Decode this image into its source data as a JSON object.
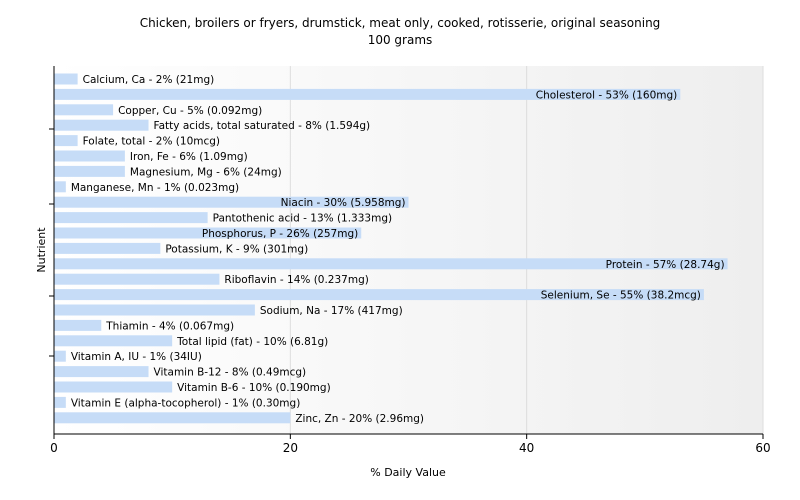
{
  "chart_data": {
    "type": "bar",
    "orientation": "horizontal",
    "title": "Chicken, broilers or fryers, drumstick, meat only, cooked, rotisserie, original seasoning",
    "subtitle": "100 grams",
    "xlabel": "% Daily Value",
    "ylabel": "Nutrient",
    "xlim": [
      0,
      60
    ],
    "xticks": [
      0,
      20,
      40,
      60
    ],
    "grid": true,
    "bar_color": "#c6dcf7",
    "categories": [
      "Calcium, Ca",
      "Cholesterol",
      "Copper, Cu",
      "Fatty acids, total saturated",
      "Folate, total",
      "Iron, Fe",
      "Magnesium, Mg",
      "Manganese, Mn",
      "Niacin",
      "Pantothenic acid",
      "Phosphorus, P",
      "Potassium, K",
      "Protein",
      "Riboflavin",
      "Selenium, Se",
      "Sodium, Na",
      "Thiamin",
      "Total lipid (fat)",
      "Vitamin A, IU",
      "Vitamin B-12",
      "Vitamin B-6",
      "Vitamin E (alpha-tocopherol)",
      "Zinc, Zn"
    ],
    "values": [
      2,
      53,
      5,
      8,
      2,
      6,
      6,
      1,
      30,
      13,
      26,
      9,
      57,
      14,
      55,
      17,
      4,
      10,
      1,
      8,
      10,
      1,
      20
    ],
    "labels": [
      "Calcium, Ca - 2% (21mg)",
      "Cholesterol - 53% (160mg)",
      "Copper, Cu - 5% (0.092mg)",
      "Fatty acids, total saturated - 8% (1.594g)",
      "Folate, total - 2% (10mcg)",
      "Iron, Fe - 6% (1.09mg)",
      "Magnesium, Mg - 6% (24mg)",
      "Manganese, Mn - 1% (0.023mg)",
      "Niacin - 30% (5.958mg)",
      "Pantothenic acid - 13% (1.333mg)",
      "Phosphorus, P - 26% (257mg)",
      "Potassium, K - 9% (301mg)",
      "Protein - 57% (28.74g)",
      "Riboflavin - 14% (0.237mg)",
      "Selenium, Se - 55% (38.2mcg)",
      "Sodium, Na - 17% (417mg)",
      "Thiamin - 4% (0.067mg)",
      "Total lipid (fat) - 10% (6.81g)",
      "Vitamin A, IU - 1% (34IU)",
      "Vitamin B-12 - 8% (0.49mcg)",
      "Vitamin B-6 - 10% (0.190mg)",
      "Vitamin E (alpha-tocopherol) - 1% (0.30mg)",
      "Zinc, Zn - 20% (2.96mg)"
    ],
    "label_inside_bar": [
      false,
      true,
      false,
      false,
      false,
      false,
      false,
      false,
      true,
      false,
      true,
      false,
      true,
      false,
      true,
      false,
      false,
      false,
      false,
      false,
      false,
      false,
      false
    ]
  }
}
